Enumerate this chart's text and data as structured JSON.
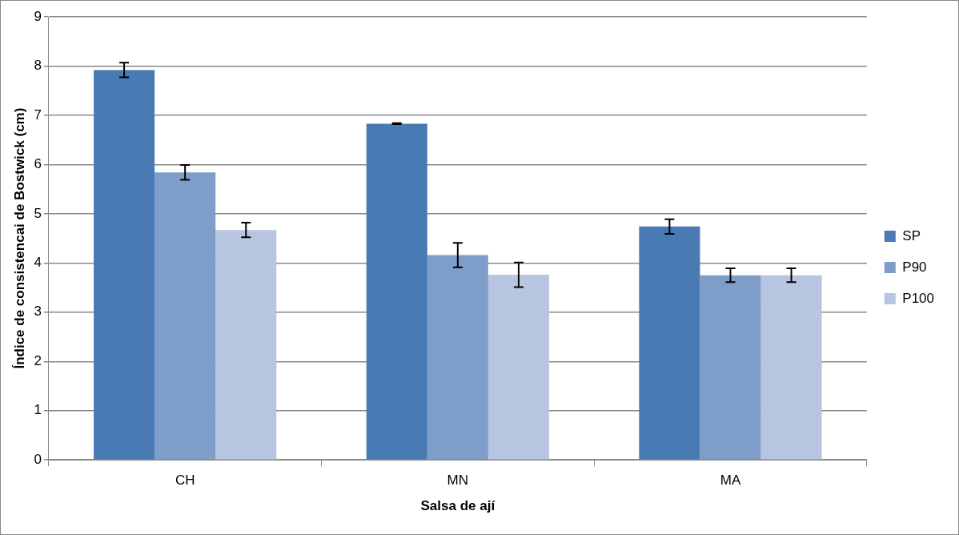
{
  "chart_data": {
    "type": "bar",
    "xlabel": "Salsa de ají",
    "ylabel": "Índice de consistencai de Bostwick (cm)",
    "categories": [
      "CH",
      "MN",
      "MA"
    ],
    "series": [
      {
        "name": "SP",
        "color": "#4a7ab4",
        "values": [
          7.92,
          6.83,
          4.74
        ],
        "errors": [
          0.15,
          0.01,
          0.15
        ]
      },
      {
        "name": "P90",
        "color": "#7f9dc9",
        "values": [
          5.84,
          4.16,
          3.75
        ],
        "errors": [
          0.15,
          0.25,
          0.14
        ]
      },
      {
        "name": "P100",
        "color": "#b7c5e0",
        "values": [
          4.67,
          3.76,
          3.75
        ],
        "errors": [
          0.15,
          0.25,
          0.14
        ]
      }
    ],
    "ylim": [
      0,
      9
    ],
    "yticks": [
      0,
      1,
      2,
      3,
      4,
      5,
      6,
      7,
      8,
      9
    ],
    "grid": "y",
    "legend": "right"
  }
}
